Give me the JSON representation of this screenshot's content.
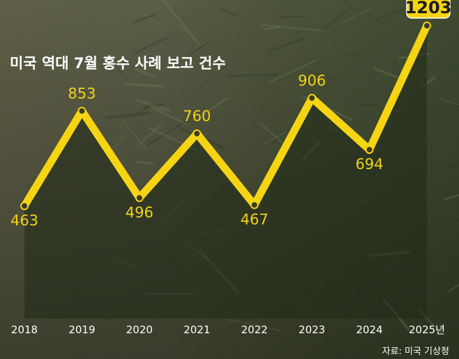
{
  "title": "미국 역대 7월 홍수 사례 보고 건수",
  "source": "자료: 미국 기상청",
  "colors": {
    "line": "#f5d414",
    "label": "#f2d21b",
    "highlight_bg": "#f5d414",
    "text": "#ffffff"
  },
  "chart_data": {
    "type": "line",
    "title": "미국 역대 7월 홍수 사례 보고 건수",
    "categories": [
      "2018",
      "2019",
      "2020",
      "2021",
      "2022",
      "2023",
      "2024",
      "2025년"
    ],
    "values": [
      463,
      853,
      496,
      760,
      467,
      906,
      694,
      1203
    ],
    "value_labels": [
      "463",
      "853",
      "496",
      "760",
      "467",
      "906",
      "694",
      "1203"
    ],
    "xlabel": "",
    "ylabel": "",
    "ylim": [
      0,
      1300
    ],
    "grid": false,
    "legend": "none"
  }
}
